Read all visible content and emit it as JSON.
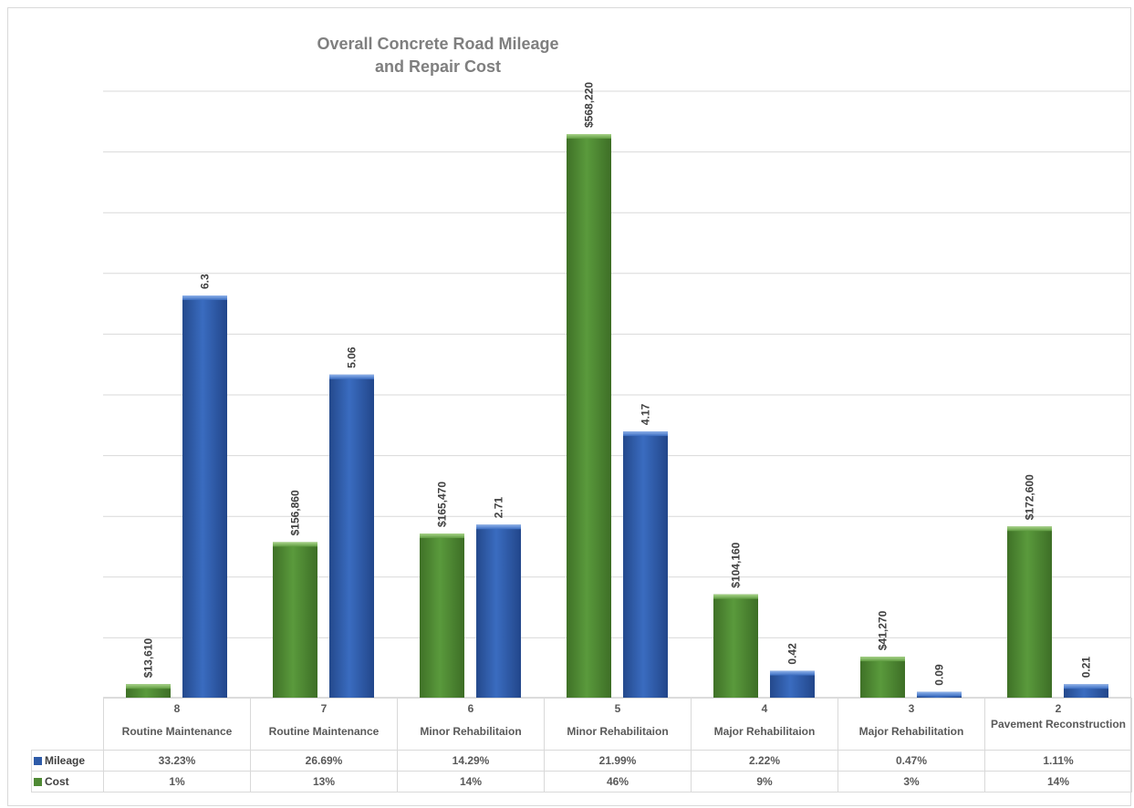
{
  "colors": {
    "cost": "#4f8a34",
    "mileage": "#2e5ba8",
    "grid": "#d9d9d9",
    "label": "#404040"
  },
  "chart_data": {
    "type": "bar",
    "title": "Overall Concrete Road Mileage and Repair Cost",
    "grid": true,
    "legend": "table-left",
    "categories": [
      {
        "num": "8",
        "label": "Routine Maintenance"
      },
      {
        "num": "7",
        "label": "Routine Maintenance"
      },
      {
        "num": "6",
        "label": "Minor Rehabilitaion"
      },
      {
        "num": "5",
        "label": "Minor Rehabilitaion"
      },
      {
        "num": "4",
        "label": "Major Rehabilitaion"
      },
      {
        "num": "3",
        "label": "Major Rehabilitation"
      },
      {
        "num": "2",
        "label": "Pavement Reconstruction"
      }
    ],
    "series": [
      {
        "name": "Mileage",
        "values": [
          6.3,
          5.06,
          2.71,
          4.17,
          0.42,
          0.09,
          0.21
        ],
        "data_labels": [
          "6.3",
          "5.06",
          "2.71",
          "4.17",
          "0.42",
          "0.09",
          "0.21"
        ],
        "table": [
          "33.23%",
          "26.69%",
          "14.29%",
          "21.99%",
          "2.22%",
          "0.47%",
          "1.11%"
        ]
      },
      {
        "name": "Cost",
        "values": [
          13610,
          156860,
          165470,
          568220,
          104160,
          41270,
          172600
        ],
        "data_labels": [
          "$13,610",
          "$156,860",
          "$165,470",
          "$568,220",
          "$104,160",
          "$41,270",
          "$172,600"
        ],
        "table": [
          "1%",
          "13%",
          "14%",
          "46%",
          "9%",
          "3%",
          "14%"
        ]
      }
    ]
  }
}
